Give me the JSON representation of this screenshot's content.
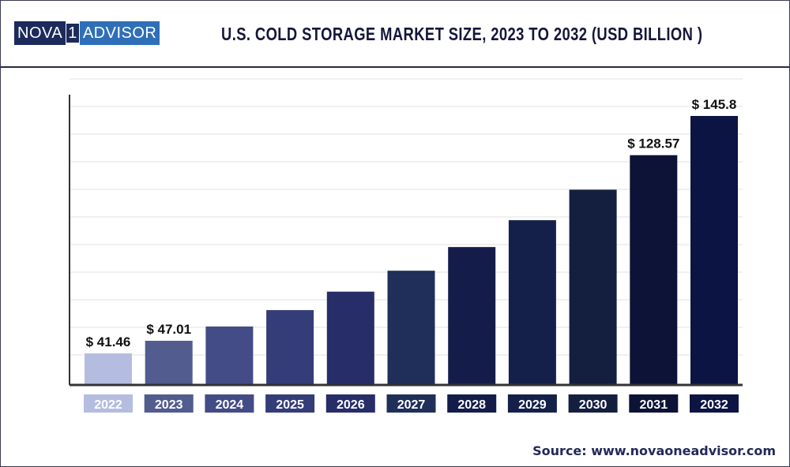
{
  "logo": {
    "left": "NOVA",
    "mark": "1",
    "right": "ADVISOR"
  },
  "chart_data": {
    "type": "bar",
    "title": "U.S. COLD STORAGE MARKET SIZE, 2023 TO 2032 (USD BILLION )",
    "xlabel": "",
    "ylabel": "",
    "categories": [
      "2022",
      "2023",
      "2024",
      "2025",
      "2026",
      "2027",
      "2028",
      "2029",
      "2030",
      "2031",
      "2032"
    ],
    "values": [
      41.46,
      47.01,
      53.3,
      60.5,
      68.6,
      77.8,
      88.2,
      100.0,
      113.4,
      128.57,
      145.8
    ],
    "data_labels": [
      "$ 41.46",
      "$ 47.01",
      "",
      "",
      "",
      "",
      "",
      "",
      "",
      "$ 128.57",
      "$ 145.8"
    ],
    "colors": [
      "#b4bde0",
      "#525c8e",
      "#434c86",
      "#343d78",
      "#262d68",
      "#1f2f5a",
      "#141d4a",
      "#15204a",
      "#141f3f",
      "#0c1336",
      "#0b1442"
    ],
    "grid": true
  },
  "source": "Source: www.novaoneadvisor.com"
}
